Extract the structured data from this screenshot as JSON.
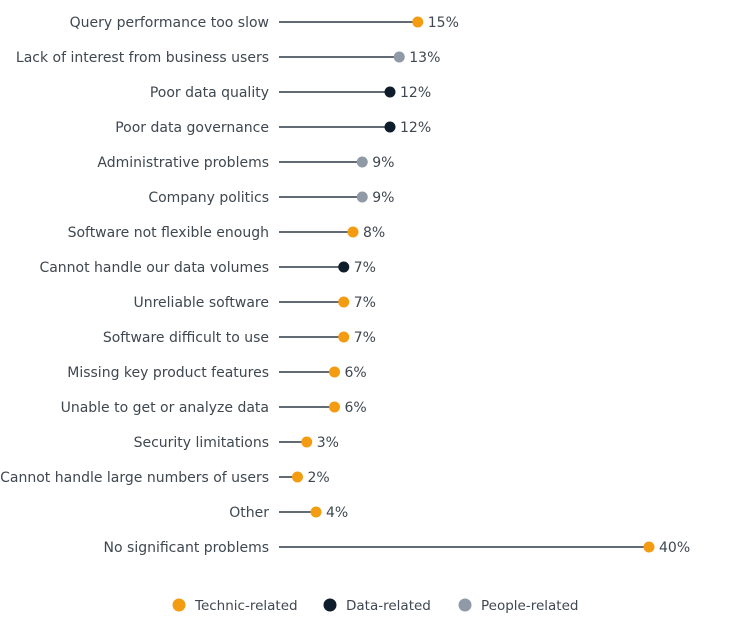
{
  "chart_data": {
    "type": "lollipop",
    "value_suffix": "%",
    "x_range": [
      0,
      40
    ],
    "grid": false,
    "legend_position": "bottom",
    "groups": [
      {
        "key": "technic",
        "name": "Technic-related",
        "color": "#f39c12"
      },
      {
        "key": "data",
        "name": "Data-related",
        "color": "#0f1c2b"
      },
      {
        "key": "people",
        "name": "People-related",
        "color": "#8f9aa6"
      }
    ],
    "items": [
      {
        "label": "Query performance too slow",
        "value": 15,
        "group": "technic"
      },
      {
        "label": "Lack of interest from business users",
        "value": 13,
        "group": "people"
      },
      {
        "label": "Poor data quality",
        "value": 12,
        "group": "data"
      },
      {
        "label": "Poor data governance",
        "value": 12,
        "group": "data"
      },
      {
        "label": "Administrative problems",
        "value": 9,
        "group": "people"
      },
      {
        "label": "Company politics",
        "value": 9,
        "group": "people"
      },
      {
        "label": "Software not flexible enough",
        "value": 8,
        "group": "technic"
      },
      {
        "label": "Cannot handle our data volumes",
        "value": 7,
        "group": "data"
      },
      {
        "label": "Unreliable software",
        "value": 7,
        "group": "technic"
      },
      {
        "label": "Software difficult to use",
        "value": 7,
        "group": "technic"
      },
      {
        "label": "Missing key product features",
        "value": 6,
        "group": "technic"
      },
      {
        "label": "Unable to get or analyze data",
        "value": 6,
        "group": "technic"
      },
      {
        "label": "Security limitations",
        "value": 3,
        "group": "technic"
      },
      {
        "label": "Cannot handle large numbers of users",
        "value": 2,
        "group": "technic"
      },
      {
        "label": "Other",
        "value": 4,
        "group": "technic"
      },
      {
        "label": "No significant problems",
        "value": 40,
        "group": "technic"
      }
    ]
  }
}
